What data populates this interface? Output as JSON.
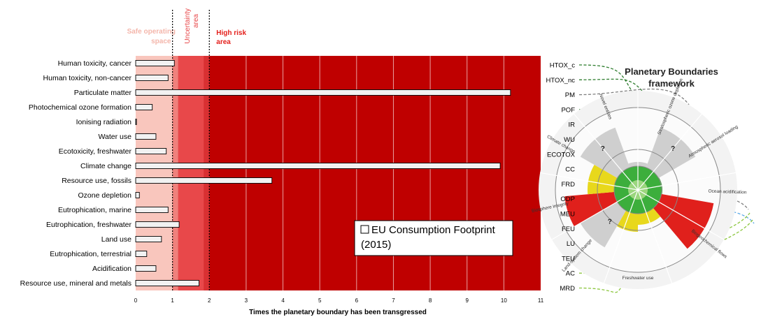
{
  "chart_data": {
    "type": "bar",
    "orientation": "horizontal",
    "categories": [
      "Human toxicity, cancer",
      "Human toxicity, non-cancer",
      "Particulate matter",
      "Photochemical ozone formation",
      "Ionising radiation",
      "Water use",
      "Ecotoxicity, freshwater",
      "Climate change",
      "Resource use, fossils",
      "Ozone depletion",
      "Eutrophication, marine",
      "Eutrophication, freshwater",
      "Land use",
      "Eutrophication, terrestrial",
      "Acidification",
      "Resource use, mineral and metals"
    ],
    "series": [
      {
        "name": "EU Consumption Footprint (2015)",
        "values": [
          1.05,
          0.88,
          10.18,
          0.45,
          0.02,
          0.55,
          0.83,
          9.9,
          3.7,
          0.1,
          0.88,
          1.18,
          0.7,
          0.3,
          0.55,
          1.72
        ]
      }
    ],
    "xlabel": "Times the planetary boundary has been transgressed",
    "ylabel": "",
    "xlim": [
      0,
      11
    ],
    "xticks": [
      0,
      1,
      2,
      3,
      4,
      5,
      6,
      7,
      8,
      9,
      10,
      11
    ],
    "zones": [
      {
        "label": "Safe operating space",
        "from": 0,
        "to": 1,
        "color": "#f9c6bd",
        "label_color": "#f4b6ab"
      },
      {
        "label": "Uncertainty area",
        "from": 1,
        "to": 2,
        "color": "#e8484a",
        "label_color": "#e8484a"
      },
      {
        "label": "High risk area",
        "from": 2,
        "to": 11,
        "color": "#bf0000",
        "label_color": "#e4201c"
      }
    ],
    "legend_label": "EU Consumption Footprint (2015)",
    "legend_position": "bottom-right",
    "bar_color": "#f2f2f2",
    "grid": true
  },
  "pb_panel": {
    "title": "Planetary Boundaries framework",
    "codes": [
      "HTOX_c",
      "HTOX_nc",
      "PM",
      "POF",
      "IR",
      "WU",
      "ECOTOX",
      "CC",
      "FRD",
      "ODP",
      "MEU",
      "FEU",
      "LU",
      "TEU",
      "AC",
      "MRD"
    ],
    "sectors": [
      "Novel entities",
      "Stratospheric ozone depletion",
      "Atmospheric aerosol loading",
      "Ocean acidification",
      "Biogeochemical flows",
      "Freshwater use",
      "Land-system change",
      "Biosphere integrity",
      "Climate change"
    ],
    "unknown_marker": "?",
    "colors": {
      "safe": "#3cae3c",
      "uncertain": "#e8d81c",
      "high": "#e0201c",
      "unknown": "#cfcfcf",
      "link_green_dark": "#2e7d2e",
      "link_green_light": "#8cc63f",
      "link_blue": "#5aa9e6",
      "link_grey": "#7f7f7f"
    }
  }
}
